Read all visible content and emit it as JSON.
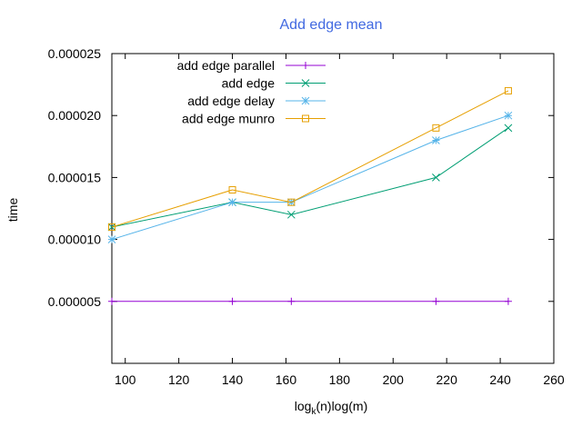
{
  "chart_data": {
    "type": "line",
    "title": "Add edge mean",
    "xlabel": "log",
    "xlabel_sub": "k",
    "xlabel_rest": "(n)log(m)",
    "ylabel": "time",
    "xlim": [
      95,
      260
    ],
    "ylim": [
      0.0,
      2.5e-05
    ],
    "xticks": [
      100,
      120,
      140,
      160,
      180,
      200,
      220,
      240,
      260
    ],
    "yticks": [
      5e-06,
      1e-05,
      1.5e-05,
      2e-05,
      2.5e-05
    ],
    "ytick_labels": [
      "0.000005",
      "0.000010",
      "0.000015",
      "0.000020",
      "0.000025"
    ],
    "grid": false,
    "legend_position": "top-left",
    "series": [
      {
        "name": "add edge parallel",
        "color": "#9400d3",
        "marker": "plus",
        "x": [
          95,
          140,
          162,
          216,
          243
        ],
        "y": [
          5e-06,
          5e-06,
          5e-06,
          5e-06,
          5e-06
        ]
      },
      {
        "name": "add edge",
        "color": "#009e73",
        "marker": "cross",
        "x": [
          95,
          140,
          162,
          216,
          243
        ],
        "y": [
          1.1e-05,
          1.3e-05,
          1.2e-05,
          1.5e-05,
          1.9e-05
        ]
      },
      {
        "name": "add edge delay",
        "color": "#56b4e9",
        "marker": "star",
        "x": [
          95,
          140,
          162,
          216,
          243
        ],
        "y": [
          1e-05,
          1.3e-05,
          1.3e-05,
          1.8e-05,
          2e-05
        ]
      },
      {
        "name": "add edge munro",
        "color": "#e69f00",
        "marker": "square",
        "x": [
          95,
          140,
          162,
          216,
          243
        ],
        "y": [
          1.1e-05,
          1.4e-05,
          1.3e-05,
          1.9e-05,
          2.2e-05
        ]
      }
    ]
  },
  "title_color": "#4169e1"
}
